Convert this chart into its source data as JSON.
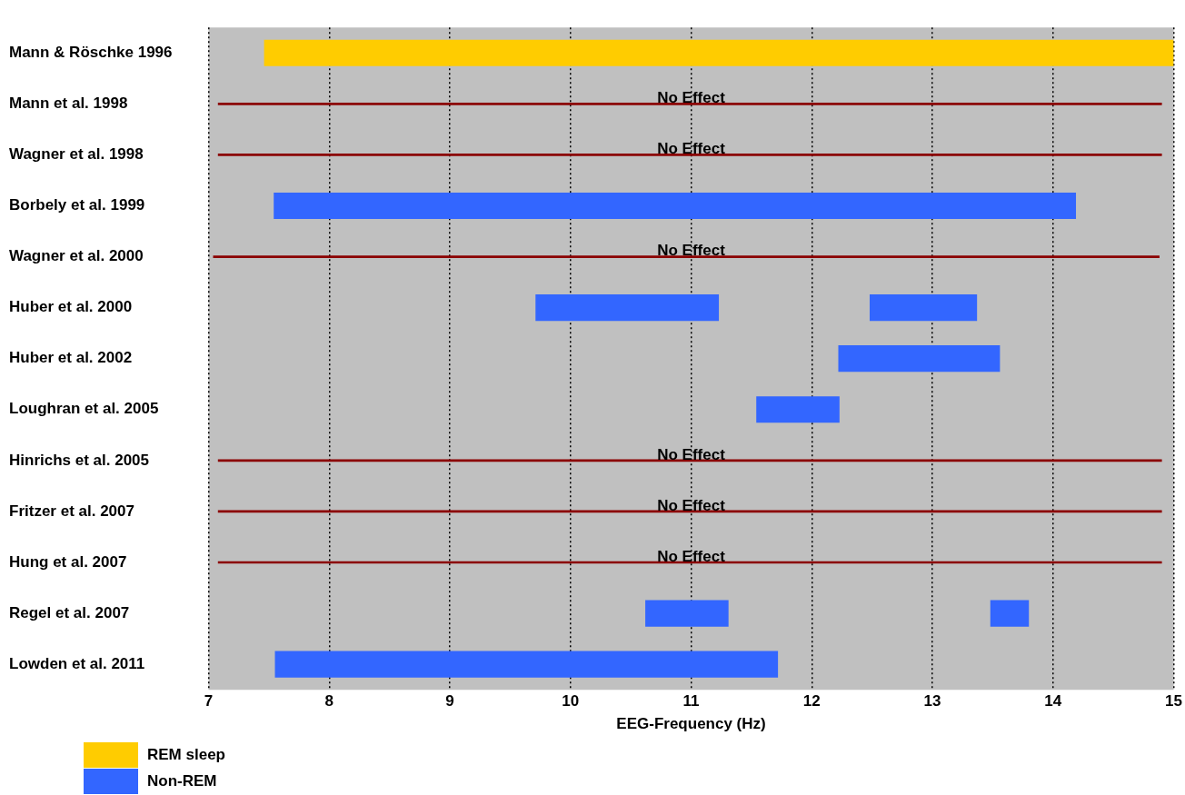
{
  "chart_data": {
    "type": "bar",
    "orientation": "horizontal",
    "xlabel": "EEG-Frequency (Hz)",
    "categories": [
      "Mann & Röschke 1996",
      "Mann et al. 1998",
      "Wagner et al. 1998",
      "Borbely et al. 1999",
      "Wagner et al. 2000",
      "Huber et al. 2000",
      "Huber et al. 2002",
      "Loughran et al. 2005",
      "Hinrichs et al. 2005",
      "Fritzer et al. 2007",
      "Hung et al. 2007",
      "Regel et al. 2007",
      "Lowden et al. 2011"
    ],
    "xlim": [
      7,
      15
    ],
    "xticks": [
      7,
      8,
      9,
      10,
      11,
      12,
      13,
      14,
      15
    ],
    "grid": "x",
    "legend": "bottom left",
    "series": [
      {
        "name": "REM sleep",
        "color": "#ffcc00",
        "base": [
          7.46,
          null,
          null,
          null,
          null,
          null,
          null,
          null,
          null,
          null,
          null,
          null,
          null
        ],
        "values": [
          7.54,
          null,
          null,
          null,
          null,
          null,
          null,
          null,
          null,
          null,
          null,
          null,
          null
        ]
      },
      {
        "name": "Non-REM",
        "color": "#3366ff",
        "base": [
          null,
          null,
          null,
          7.54,
          null,
          9.71,
          12.22,
          11.54,
          null,
          null,
          null,
          10.62,
          7.55
        ],
        "values": [
          null,
          null,
          null,
          6.65,
          null,
          1.52,
          1.34,
          0.69,
          null,
          null,
          null,
          0.69,
          4.17
        ]
      },
      {
        "color": "#3366ff",
        "base": [
          null,
          null,
          null,
          null,
          null,
          12.48,
          null,
          null,
          null,
          null,
          null,
          13.48,
          null
        ],
        "values": [
          null,
          null,
          null,
          null,
          null,
          0.89,
          null,
          null,
          null,
          null,
          null,
          0.32,
          null
        ]
      },
      {
        "color": "#8b0000",
        "base": [
          null,
          7.08,
          7.08,
          null,
          7.04,
          null,
          null,
          null,
          7.08,
          7.08,
          7.08,
          null,
          null
        ],
        "values": [
          null,
          7.82,
          7.82,
          null,
          7.84,
          null,
          null,
          null,
          7.82,
          7.82,
          7.82,
          null,
          null
        ]
      }
    ],
    "annotations": [
      {
        "text": "No Effect",
        "y": "Mann et al. 1998"
      },
      {
        "text": "No Effect",
        "y": "Wagner et al. 1998"
      },
      {
        "text": "No Effect",
        "y": "Wagner et al. 2000"
      },
      {
        "text": "No Effect",
        "y": "Hinrichs et al. 2005"
      },
      {
        "text": "No Effect",
        "y": "Fritzer et al. 2007"
      },
      {
        "text": "No Effect",
        "y": "Hung et al. 2007"
      }
    ]
  }
}
